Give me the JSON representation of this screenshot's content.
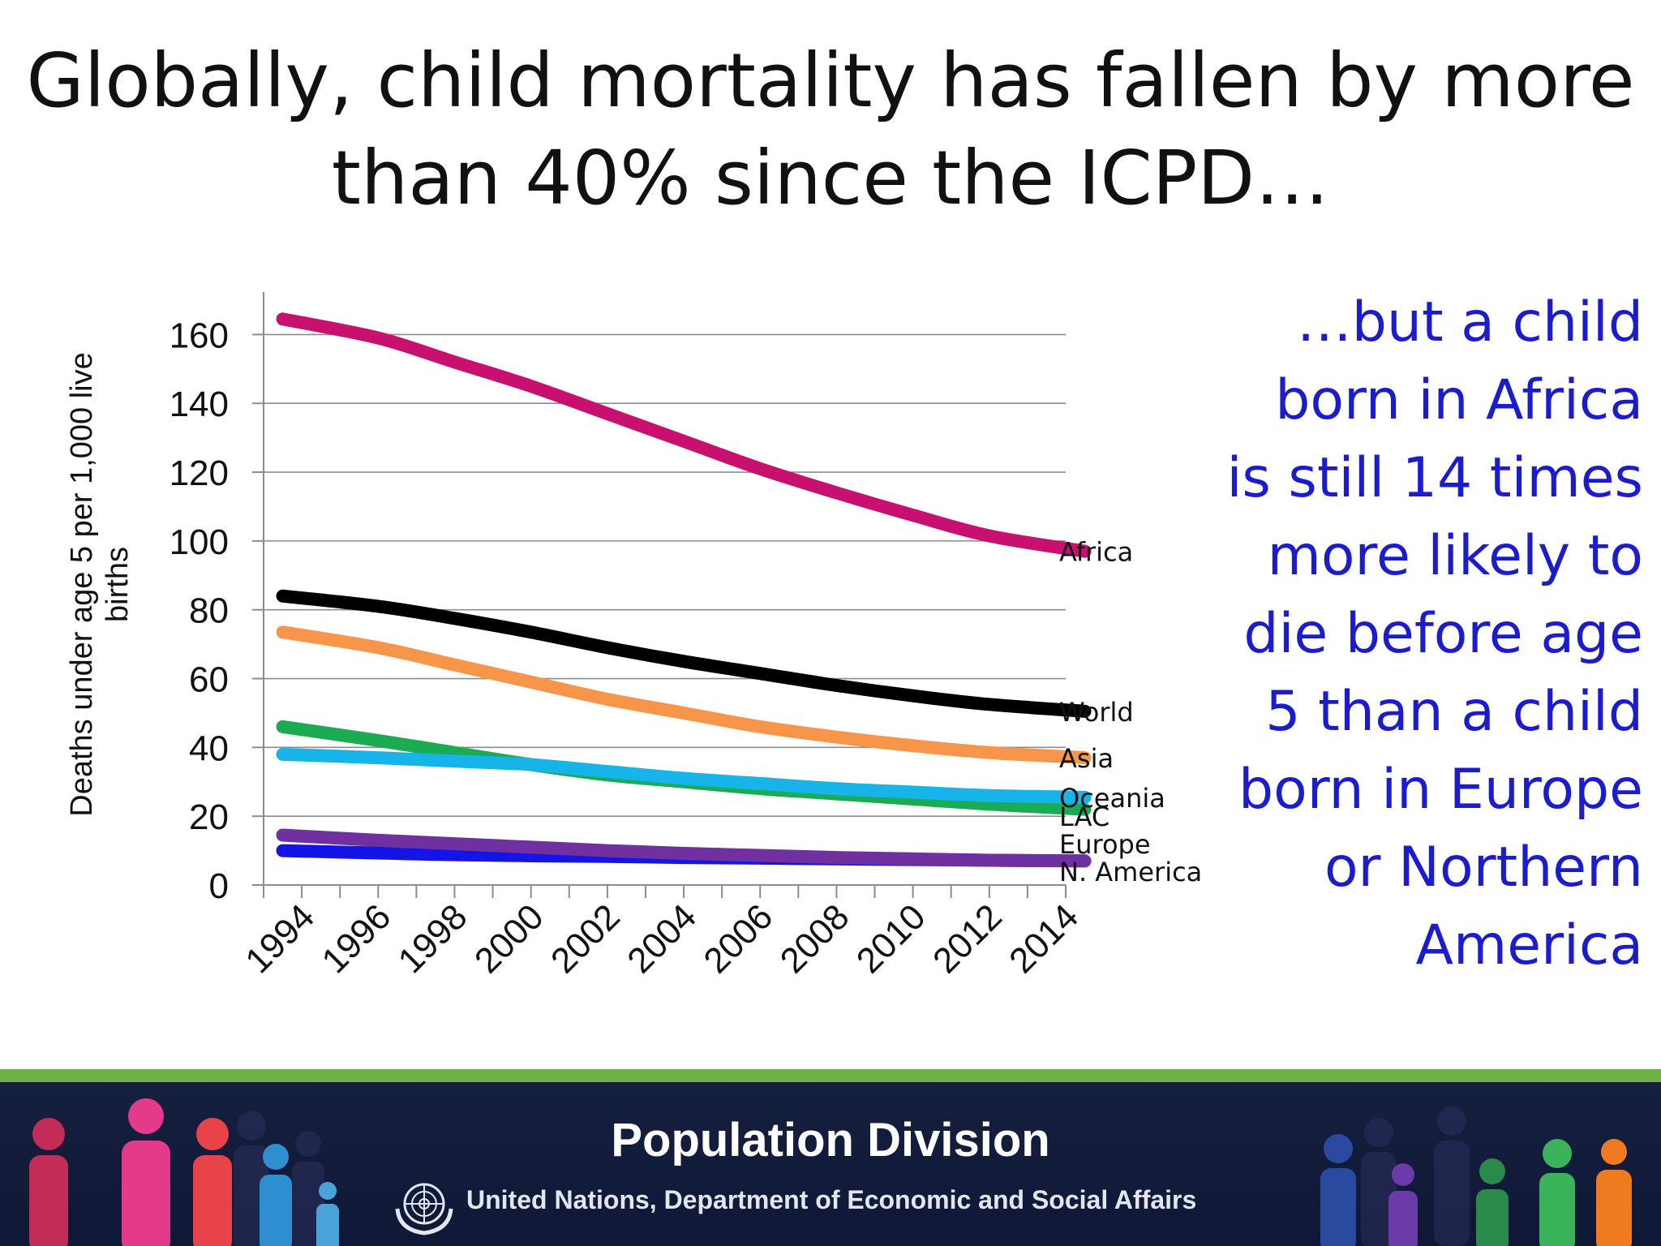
{
  "title": {
    "line1": "Globally, child mortality has fallen by more",
    "line2": "than 40% since the ICPD…"
  },
  "callout": {
    "lines": [
      "…but a child",
      "born in Africa",
      "is still 14 times",
      "more likely to",
      "die before age",
      "5 than a child",
      "born in Europe",
      "or Northern",
      "America"
    ],
    "color": "#1c1ccf"
  },
  "footer": {
    "title": "Population Division",
    "subtitle": "United Nations, Department of Economic and Social Affairs",
    "logo_icon": "un-emblem-icon",
    "decor_icon": "people-figures-icon",
    "accent_bar_color": "#6fb14a"
  },
  "chart_data": {
    "type": "line",
    "ylabel": "Deaths under age 5 per 1,000 live births",
    "xlabel": "",
    "ylim": [
      0,
      170
    ],
    "xlim": [
      1993,
      2014
    ],
    "yticks": [
      0,
      20,
      40,
      60,
      80,
      100,
      120,
      140,
      160
    ],
    "xticks": [
      1994,
      1996,
      1998,
      2000,
      2002,
      2004,
      2006,
      2008,
      2010,
      2012,
      2014
    ],
    "grid": true,
    "legend": "labels at line ends",
    "x": [
      1993.5,
      1996,
      1998,
      2000,
      2002,
      2004,
      2006,
      2008,
      2010,
      2012,
      2014.5
    ],
    "series": [
      {
        "name": "Africa",
        "color": "#c8116f",
        "values": [
          164.5,
          159,
          152,
          145,
          137,
          129,
          121,
          114,
          107.5,
          101.5,
          97
        ]
      },
      {
        "name": "World",
        "color": "#000000",
        "values": [
          84,
          81,
          77.5,
          73.5,
          69,
          65,
          61.5,
          58,
          55,
          52.5,
          50.5
        ]
      },
      {
        "name": "Asia",
        "color": "#f7964a",
        "values": [
          73.5,
          69,
          64,
          59,
          54,
          50,
          46,
          43,
          40.5,
          38.5,
          37
        ]
      },
      {
        "name": "Oceania",
        "color": "#16b4e8",
        "values": [
          38,
          37,
          36,
          35,
          33,
          31,
          29.5,
          28,
          27,
          26,
          25.5
        ]
      },
      {
        "name": "LAC",
        "color": "#1bab52",
        "values": [
          46,
          42,
          38.5,
          35,
          32,
          30,
          28,
          26.5,
          25,
          23.5,
          22
        ]
      },
      {
        "name": "Europe",
        "color": "#7030a0",
        "values": [
          14.5,
          13,
          12,
          11,
          10,
          9.2,
          8.6,
          8,
          7.6,
          7.2,
          7
        ]
      },
      {
        "name": "N. America",
        "color": "#1414e6",
        "values": [
          10,
          9.3,
          8.8,
          8.5,
          8.3,
          8,
          7.8,
          7.6,
          7.4,
          7.2,
          7
        ]
      }
    ],
    "end_label_values": {
      "Africa": 97,
      "World": 50.5,
      "Asia": 37,
      "Oceania": 25.5,
      "LAC": 20,
      "Europe": 12,
      "N. America": 4
    }
  }
}
